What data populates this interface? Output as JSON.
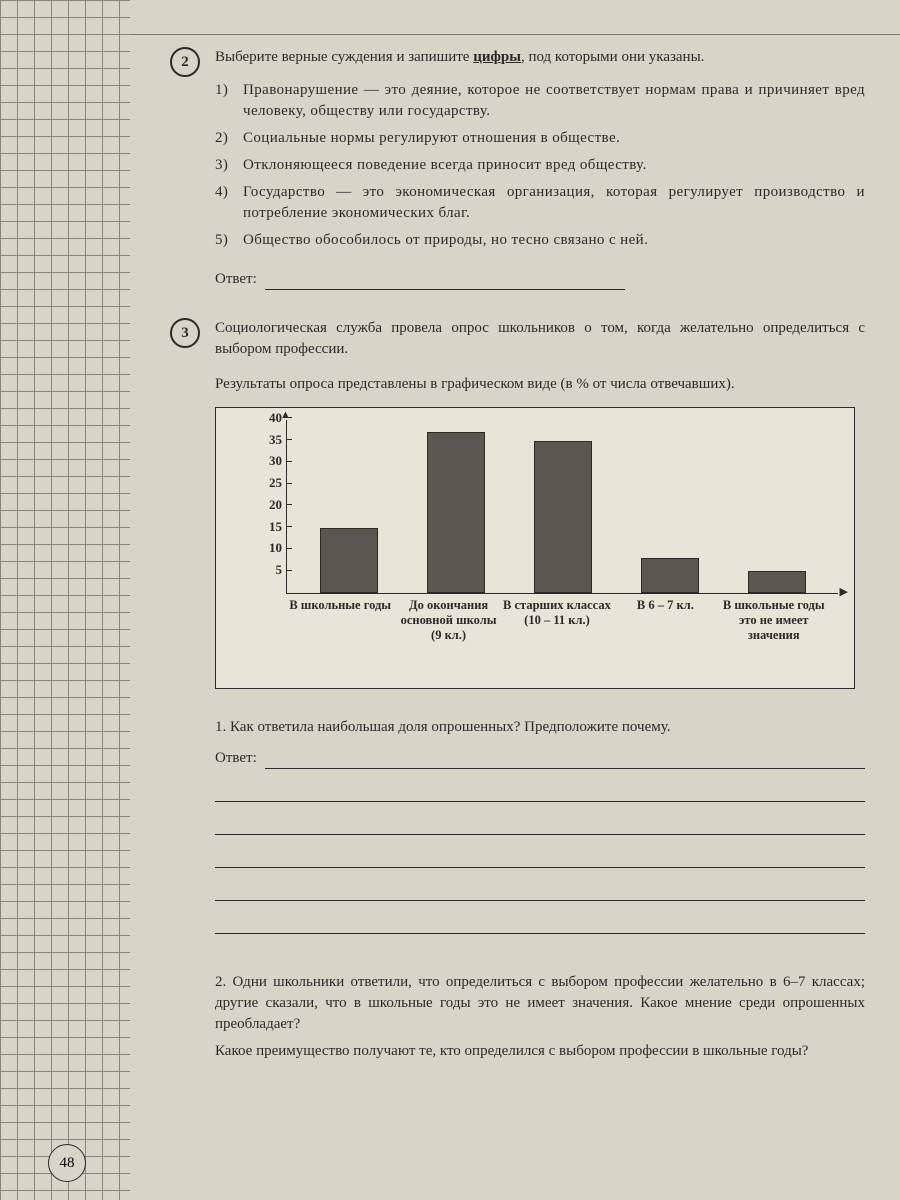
{
  "page_number": "48",
  "q2": {
    "number": "2",
    "prompt_pre": "Выберите верные суждения и запишите ",
    "prompt_bold": "цифры",
    "prompt_post": ", под которыми они указаны.",
    "options": [
      {
        "n": "1)",
        "text": "Правонарушение — это деяние, которое не соответствует нормам права и причиняет вред человеку, обществу или государству."
      },
      {
        "n": "2)",
        "text": "Социальные нормы регулируют отношения в обществе."
      },
      {
        "n": "3)",
        "text": "Отклоняющееся поведение всегда приносит вред обществу."
      },
      {
        "n": "4)",
        "text": "Государство — это экономическая организация, которая регулирует производство и потребление экономических благ."
      },
      {
        "n": "5)",
        "text": "Общество обособилось от природы, но тесно связано с ней."
      }
    ],
    "answer_label": "Ответ:"
  },
  "q3": {
    "number": "3",
    "intro": "Социологическая служба провела опрос школьников о том, когда желательно определиться с выбором профессии.",
    "sub": "Результаты опроса представлены в графическом виде (в % от числа отвечавших).",
    "chart": {
      "type": "bar",
      "categories": [
        "В школьные годы",
        "До окончания основной школы (9 кл.)",
        "В старших классах (10 – 11 кл.)",
        "В 6 – 7 кл.",
        "В школьные годы это не имеет значения"
      ],
      "values": [
        15,
        37,
        35,
        8,
        5
      ],
      "ylim": [
        0,
        40
      ],
      "ytick_step": 5,
      "yticks": [
        40,
        35,
        30,
        25,
        20,
        15,
        10,
        5
      ],
      "bar_color": "#5a5650",
      "background": "#e8e4d8",
      "axis_color": "#2a2a2a",
      "label_fontsize": 13
    },
    "sub1": "1. Как ответила наибольшая доля опрошенных? Предположите почему.",
    "answer_label": "Ответ:",
    "sub2_a": "2. Одни школьники ответили, что определиться с выбором профессии желательно в 6–7 классах; другие сказали, что в школьные годы это не имеет значения. Какое мнение среди опрошенных преобладает?",
    "sub2_b": "Какое преимущество получают те, кто определился с выбором профессии в школьные годы?"
  }
}
